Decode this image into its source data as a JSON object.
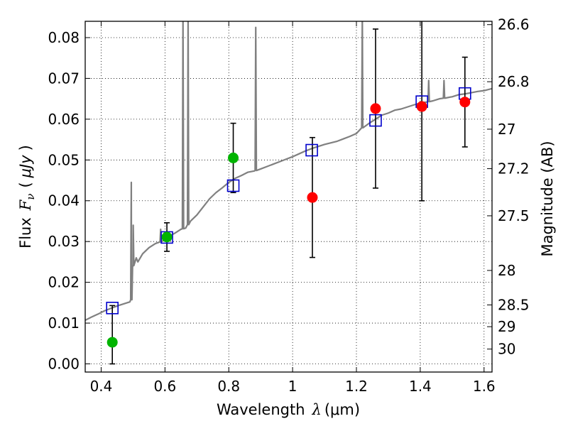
{
  "chart_data": {
    "type": "scatter",
    "x_axis": {
      "label": "Wavelength",
      "symbol": "λ",
      "unit": "(μm)",
      "range": [
        0.35,
        1.625
      ],
      "ticks": [
        "0.4",
        "0.6",
        "0.8",
        "1",
        "1.2",
        "1.4",
        "1.6"
      ],
      "tick_values": [
        0.4,
        0.6,
        0.8,
        1.0,
        1.2,
        1.4,
        1.6
      ]
    },
    "y_axis_left": {
      "label": "Flux",
      "symbol": "F",
      "subscript": "ν",
      "unit": "μJy",
      "range": [
        -0.002,
        0.084
      ],
      "ticks": [
        "0.00",
        "0.01",
        "0.02",
        "0.03",
        "0.04",
        "0.05",
        "0.06",
        "0.07",
        "0.08"
      ],
      "tick_values": [
        0.0,
        0.01,
        0.02,
        0.03,
        0.04,
        0.05,
        0.06,
        0.07,
        0.08
      ]
    },
    "y_axis_right": {
      "label": "Magnitude (AB)",
      "ticks": [
        "26.6",
        "26.8",
        "27",
        "27.2",
        "27.5",
        "28",
        "28.5",
        "29",
        "30"
      ],
      "tick_values": [
        26.6,
        26.8,
        27.0,
        27.2,
        27.5,
        28.0,
        28.5,
        29.0,
        30.0
      ]
    },
    "grid": true,
    "colors": {
      "spectrum": "#808080",
      "model_photometry": "#0000cc",
      "detections": "#00b400",
      "upper_limits": "#ff0000",
      "error_bars": "#000000"
    },
    "spectrum": {
      "x": [
        0.35,
        0.37,
        0.39,
        0.41,
        0.43,
        0.45,
        0.47,
        0.49,
        0.495,
        0.5,
        0.51,
        0.515,
        0.53,
        0.55,
        0.57,
        0.59,
        0.6,
        0.61,
        0.63,
        0.65,
        0.665,
        0.68,
        0.7,
        0.72,
        0.74,
        0.76,
        0.78,
        0.8,
        0.82,
        0.84,
        0.86,
        0.88,
        0.9,
        0.92,
        0.94,
        0.96,
        0.98,
        1.0,
        1.02,
        1.04,
        1.06,
        1.08,
        1.1,
        1.12,
        1.14,
        1.16,
        1.18,
        1.2,
        1.22,
        1.24,
        1.26,
        1.28,
        1.3,
        1.32,
        1.34,
        1.36,
        1.38,
        1.4,
        1.42,
        1.44,
        1.46,
        1.48,
        1.5,
        1.52,
        1.54,
        1.56,
        1.58,
        1.6,
        1.625
      ],
      "y": [
        0.0107,
        0.0115,
        0.0122,
        0.013,
        0.0136,
        0.0142,
        0.0147,
        0.0152,
        0.0158,
        0.024,
        0.026,
        0.025,
        0.027,
        0.0285,
        0.0295,
        0.03,
        0.0305,
        0.0312,
        0.032,
        0.033,
        0.0333,
        0.035,
        0.0365,
        0.0385,
        0.0405,
        0.042,
        0.0432,
        0.0445,
        0.0455,
        0.0462,
        0.047,
        0.0473,
        0.0478,
        0.0484,
        0.049,
        0.0496,
        0.0502,
        0.0508,
        0.0515,
        0.0522,
        0.0528,
        0.0533,
        0.0538,
        0.0542,
        0.0546,
        0.0552,
        0.0558,
        0.0565,
        0.058,
        0.059,
        0.06,
        0.061,
        0.0615,
        0.0622,
        0.0625,
        0.063,
        0.0635,
        0.064,
        0.0642,
        0.0645,
        0.065,
        0.0652,
        0.0655,
        0.066,
        0.0662,
        0.0665,
        0.0668,
        0.067,
        0.0675
      ],
      "emission_lines": [
        {
          "x": 0.4945,
          "peak": 0.0445
        },
        {
          "x": 0.5005,
          "peak": 0.034
        },
        {
          "x": 0.5865,
          "peak": 0.033
        },
        {
          "x": 0.6565,
          "peak": 0.0855
        },
        {
          "x": 0.6725,
          "peak": 0.0855
        },
        {
          "x": 0.8845,
          "peak": 0.0825
        },
        {
          "x": 1.2185,
          "peak": 0.0855
        },
        {
          "x": 1.4265,
          "peak": 0.0695
        },
        {
          "x": 1.4745,
          "peak": 0.0695
        }
      ]
    },
    "model_photometry": {
      "x": [
        0.435,
        0.606,
        0.814,
        1.06,
        1.26,
        1.405,
        1.54
      ],
      "y": [
        0.0137,
        0.031,
        0.0437,
        0.0524,
        0.0597,
        0.0643,
        0.0663
      ]
    },
    "detections": {
      "x": [
        0.435,
        0.606,
        0.814
      ],
      "y": [
        0.0053,
        0.0311,
        0.0505
      ],
      "err_low": [
        0.0053,
        0.0035,
        0.0085
      ],
      "err_high": [
        0.009,
        0.0035,
        0.0085
      ]
    },
    "upper_limits": {
      "x": [
        1.062,
        1.26,
        1.405,
        1.54
      ],
      "y": [
        0.0408,
        0.0626,
        0.0631,
        0.0642
      ],
      "err_low": [
        0.0147,
        0.0195,
        0.0231,
        0.011
      ],
      "err_high": [
        0.0147,
        0.0195,
        0.0231,
        0.011
      ]
    }
  }
}
